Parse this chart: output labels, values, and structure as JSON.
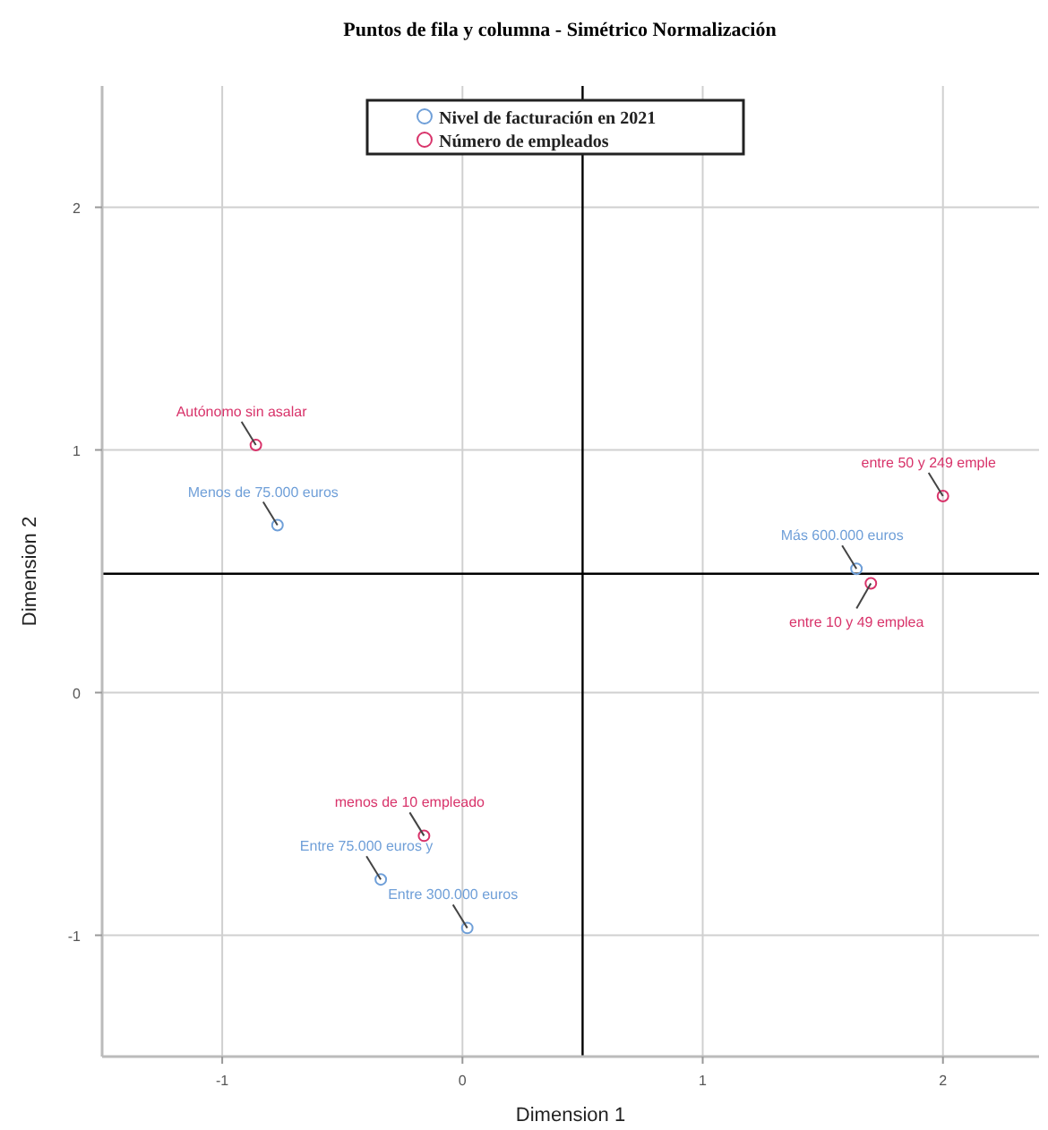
{
  "chart_data": {
    "type": "scatter",
    "title": "Puntos de fila y columna - Simétrico Normalización",
    "xlabel": "Dimension 1",
    "ylabel": "Dimension 2",
    "xlim": [
      -1.5,
      2.4
    ],
    "ylim": [
      -1.5,
      2.5
    ],
    "xticks": [
      -1,
      0,
      1,
      2
    ],
    "yticks": [
      -1,
      0,
      1,
      2
    ],
    "grid": true,
    "legend": "top",
    "marker": "circle",
    "series": [
      {
        "name": "Nivel de facturación en 2021",
        "color": "#6f9fd8",
        "x": [
          -0.77,
          1.64,
          -0.34,
          0.02
        ],
        "values": [
          0.69,
          0.51,
          -0.77,
          -0.97
        ]
      },
      {
        "name": "Número de empleados",
        "color": "#d8336a",
        "x": [
          -0.86,
          2.0,
          1.7,
          -0.16
        ],
        "values": [
          1.02,
          0.81,
          0.45,
          -0.59
        ]
      }
    ],
    "ref_lines": [
      {
        "axis": "x",
        "value": 0.5,
        "color": "#000000"
      },
      {
        "axis": "y",
        "value": 0.49,
        "color": "#000000"
      }
    ],
    "annotations": [
      {
        "text": "Menos de 75.000 euros",
        "x": -0.77,
        "y": 0.69
      },
      {
        "text": "Más 600.000 euros",
        "x": 1.64,
        "y": 0.51
      },
      {
        "text": "Entre 75.000 euros y",
        "x": -0.34,
        "y": -0.77
      },
      {
        "text": "Entre 300.000 euros",
        "x": 0.02,
        "y": -0.97
      },
      {
        "text": "Autónomo sin asalar",
        "x": -0.86,
        "y": 1.02
      },
      {
        "text": "entre 50 y 249 emple",
        "x": 2.0,
        "y": 0.81
      },
      {
        "text": "entre 10 y 49 emplea",
        "x": 1.7,
        "y": 0.45
      },
      {
        "text": "menos de 10 empleado",
        "x": -0.16,
        "y": -0.59
      }
    ]
  }
}
